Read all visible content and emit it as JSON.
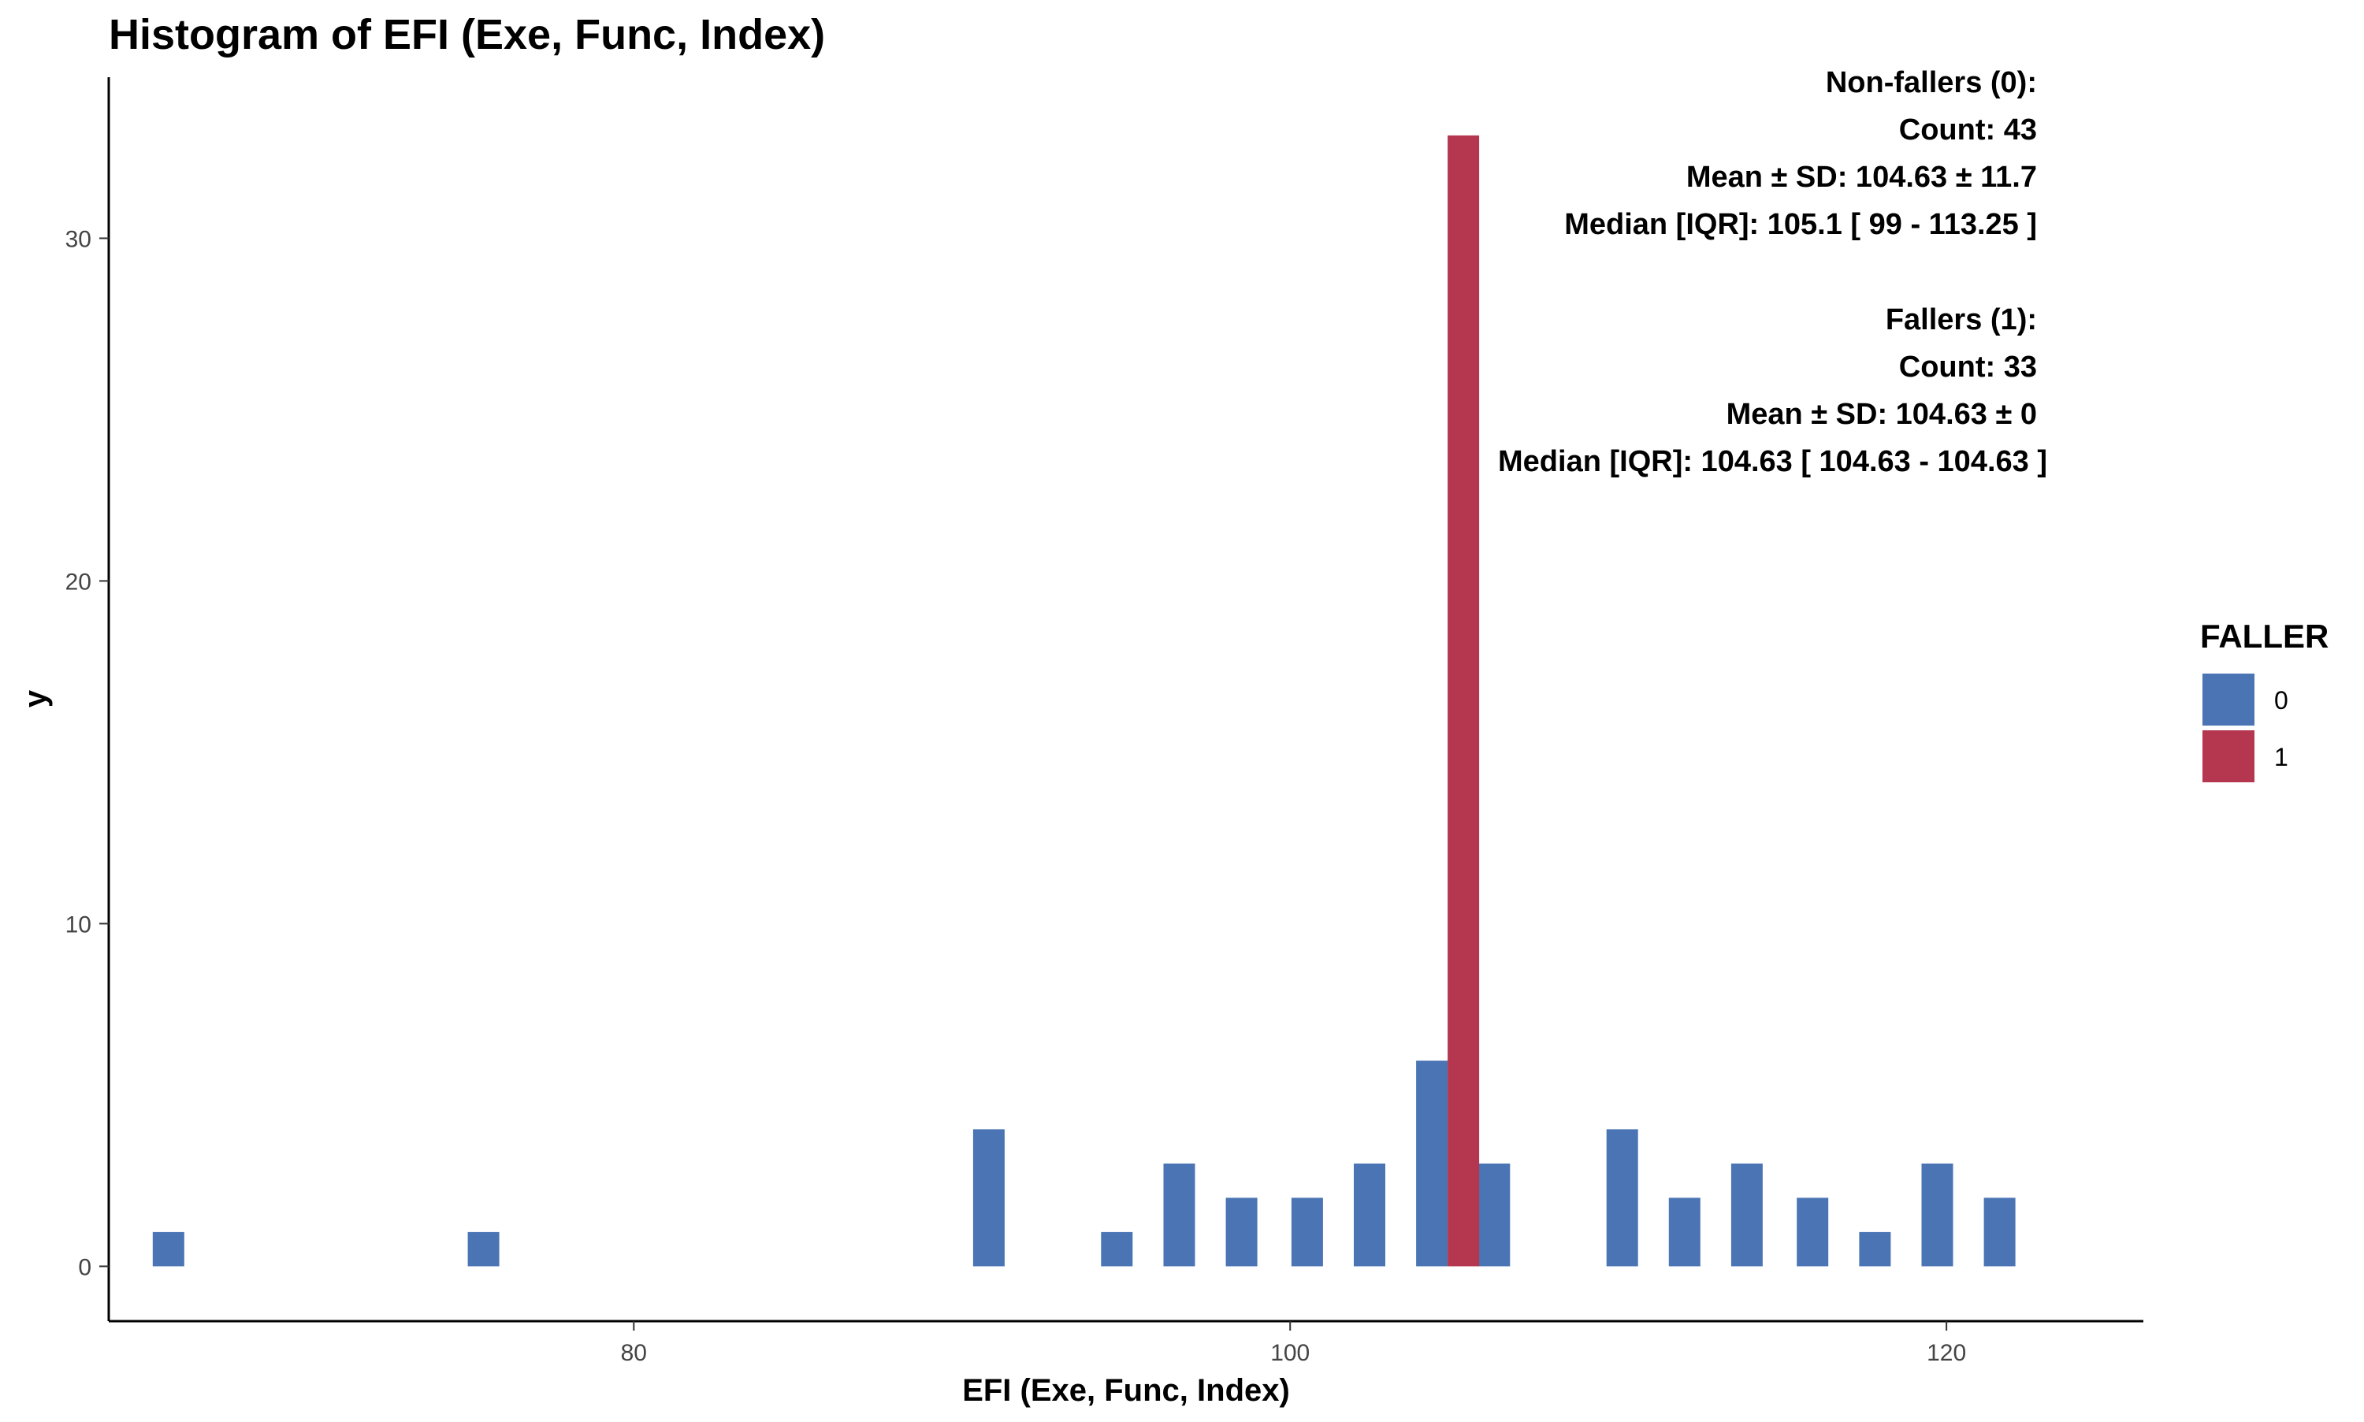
{
  "chart_data": {
    "type": "bar",
    "title": "Histogram of EFI (Exe, Func, Index)",
    "xlabel": "EFI (Exe, Func, Index)",
    "ylabel": "y",
    "xlim": [
      64,
      126
    ],
    "ylim": [
      -1.6,
      34.7
    ],
    "x_ticks": [
      80,
      100,
      120
    ],
    "y_ticks": [
      0,
      10,
      20,
      30
    ],
    "bin_width": 1.92,
    "grid": false,
    "legend": {
      "title": "FALLER",
      "placement": "right",
      "entries": [
        {
          "label": "0",
          "color": "#4a74b4"
        },
        {
          "label": "1",
          "color": "#b5364f"
        }
      ]
    },
    "series": [
      {
        "name": "0",
        "color": "#4a74b4",
        "x": [
          66.3,
          75.9,
          91.3,
          95.2,
          97.1,
          99.0,
          101.0,
          102.9,
          104.8,
          106.7,
          110.6,
          112.5,
          114.4,
          116.4,
          118.3,
          120.2,
          122.1
        ],
        "values": [
          1,
          1,
          4,
          1,
          3,
          2,
          2,
          3,
          6,
          3,
          4,
          2,
          3,
          2,
          1,
          3,
          2
        ]
      },
      {
        "name": "1",
        "color": "#b5364f",
        "x": [
          104.8
        ],
        "values": [
          33
        ]
      }
    ],
    "annotations": [
      "Non-fallers (0):",
      "Count: 43",
      "Mean ± SD: 104.63 ± 11.7",
      "Median [IQR]: 105.1 [ 99 - 113.25 ]",
      "Fallers (1):",
      "Count: 33",
      "Mean ± SD: 104.63 ± 0",
      "Median [IQR]: 104.63 [ 104.63 - 104.63 ]"
    ]
  }
}
